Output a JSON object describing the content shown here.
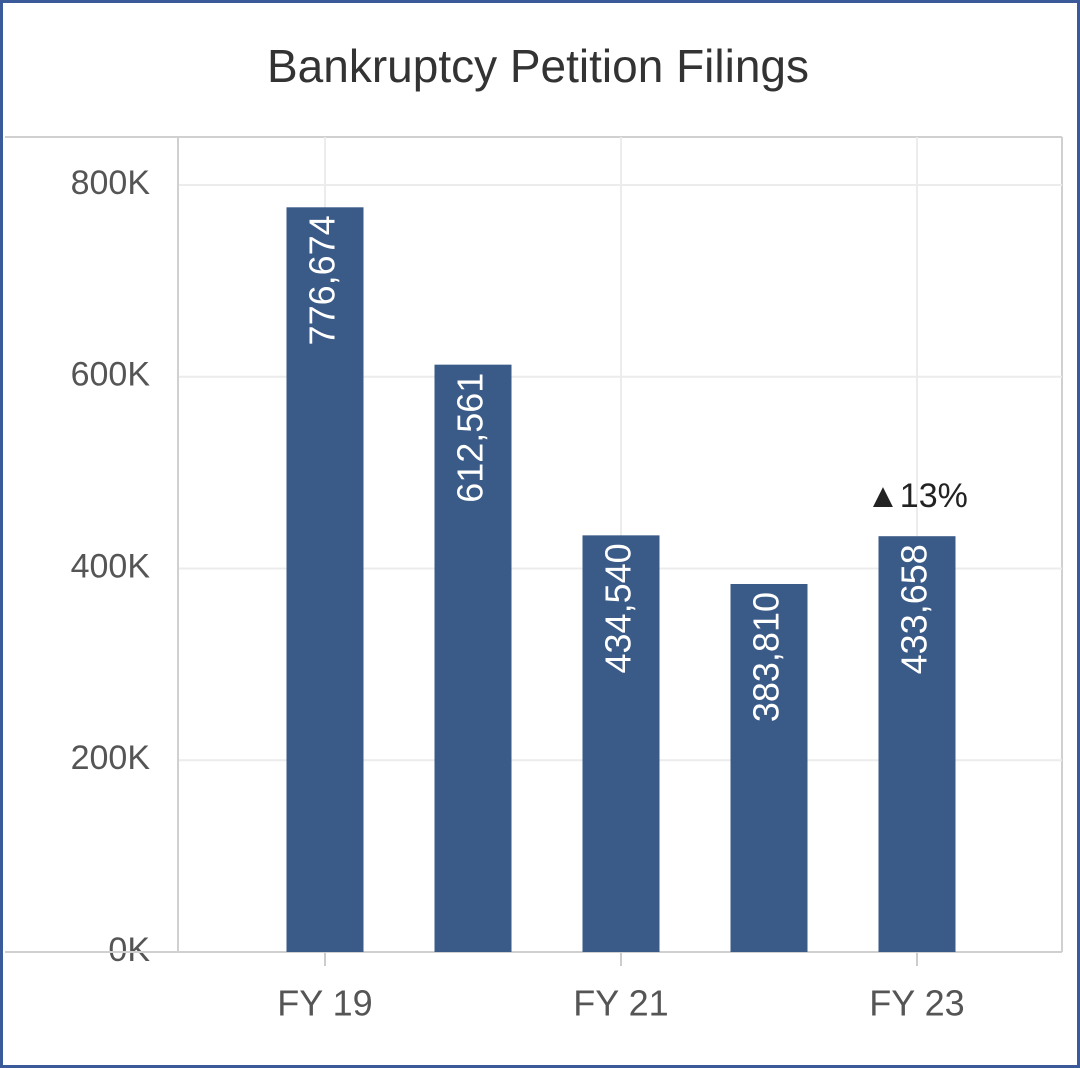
{
  "chart_data": {
    "type": "bar",
    "title": "Bankruptcy Petition Filings",
    "categories": [
      "FY 19",
      null,
      "FY 21",
      null,
      "FY 23"
    ],
    "values": [
      776674,
      612561,
      434540,
      383810,
      433658
    ],
    "value_labels": [
      "776,674",
      "612,561",
      "434,540",
      "383,810",
      "433,658"
    ],
    "color": "#3a5a87",
    "ylim": [
      0,
      850000
    ],
    "yticks": [
      {
        "value": 0,
        "label": "0K"
      },
      {
        "value": 200000,
        "label": "200K"
      },
      {
        "value": 400000,
        "label": "400K"
      },
      {
        "value": 600000,
        "label": "600K"
      },
      {
        "value": 800000,
        "label": "800K"
      }
    ],
    "grid": true,
    "annotation": "▲13%"
  }
}
